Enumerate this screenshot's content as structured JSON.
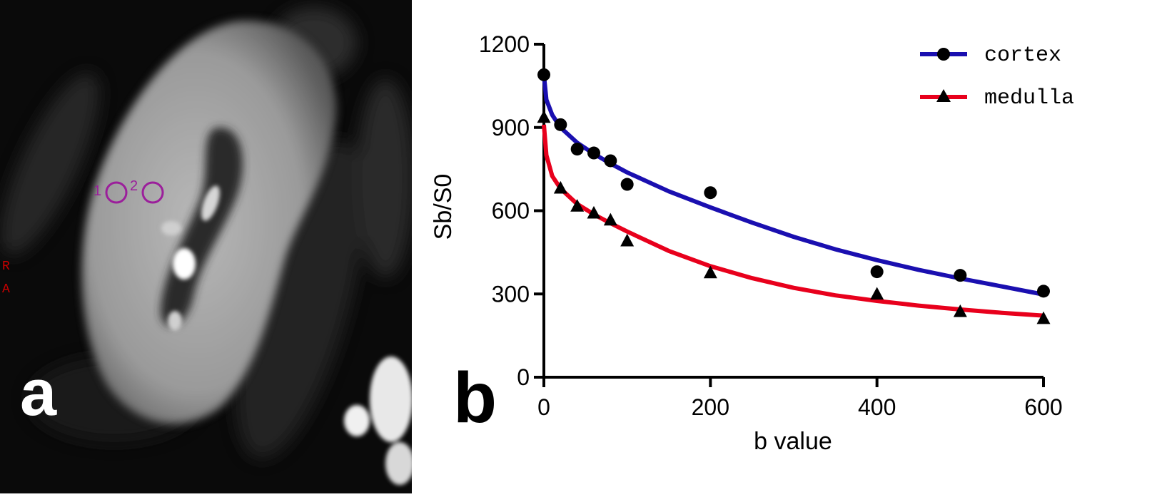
{
  "panel_a": {
    "label": "a",
    "roi_labels": [
      "1",
      "2"
    ],
    "orientation_labels": [
      "R",
      "A"
    ],
    "colors": {
      "roi": "#9b1f9b",
      "orientation": "#cc0000"
    }
  },
  "panel_b": {
    "label": "b"
  },
  "chart_data": {
    "type": "scatter",
    "xlabel": "b value",
    "ylabel": "Sb/S0",
    "xlim": [
      0,
      600
    ],
    "ylim": [
      0,
      1200
    ],
    "xticks": [
      0,
      200,
      400,
      600
    ],
    "yticks": [
      0,
      300,
      600,
      900,
      1200
    ],
    "grid": false,
    "legend_position": "top-right",
    "series": [
      {
        "name": "cortex",
        "marker": "circle",
        "color": "#1a0fb0",
        "x": [
          0,
          20,
          40,
          60,
          80,
          100,
          200,
          400,
          500,
          600
        ],
        "y": [
          1090,
          910,
          822,
          808,
          780,
          695,
          665,
          380,
          367,
          310
        ],
        "fit": {
          "x": [
            0,
            3,
            10,
            20,
            40,
            60,
            80,
            100,
            150,
            200,
            250,
            300,
            350,
            400,
            450,
            500,
            550,
            600
          ],
          "y": [
            1090,
            1000,
            945,
            900,
            845,
            805,
            770,
            738,
            670,
            612,
            557,
            506,
            461,
            422,
            387,
            356,
            327,
            298
          ]
        }
      },
      {
        "name": "medulla",
        "marker": "triangle",
        "color": "#e8001c",
        "x": [
          0,
          20,
          40,
          60,
          80,
          100,
          200,
          400,
          500,
          600
        ],
        "y": [
          935,
          680,
          615,
          590,
          565,
          490,
          375,
          298,
          235,
          210
        ],
        "fit": {
          "x": [
            0,
            3,
            10,
            20,
            40,
            60,
            80,
            100,
            150,
            200,
            250,
            300,
            350,
            400,
            450,
            500,
            550,
            600
          ],
          "y": [
            910,
            800,
            725,
            680,
            624,
            587,
            555,
            525,
            455,
            400,
            357,
            322,
            295,
            275,
            258,
            244,
            232,
            222
          ]
        }
      }
    ]
  }
}
